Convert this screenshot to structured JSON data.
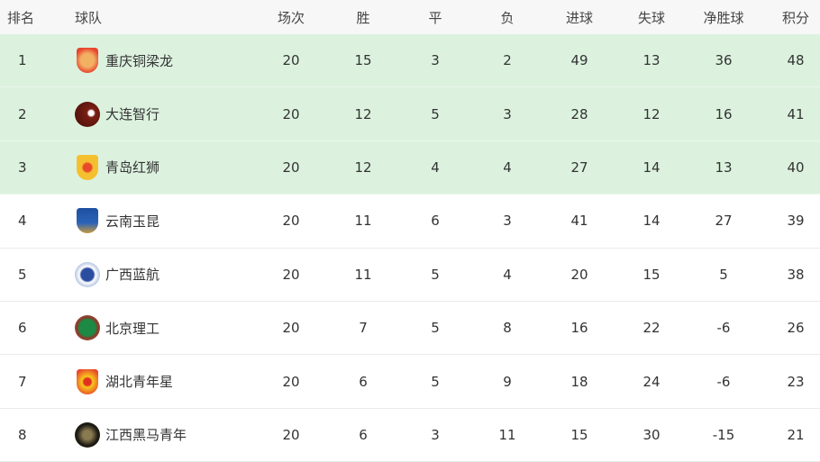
{
  "headers": [
    "排名",
    "球队",
    "场次",
    "胜",
    "平",
    "负",
    "进球",
    "失球",
    "净胜球",
    "积分"
  ],
  "highlight_color": "#dcf2df",
  "rows": [
    {
      "rank": "1",
      "team": "重庆铜梁龙",
      "logo": "chongqing-badge-icon",
      "played": "20",
      "w": "15",
      "d": "3",
      "l": "2",
      "gf": "49",
      "ga": "13",
      "gd": "36",
      "pts": "48"
    },
    {
      "rank": "2",
      "team": "大连智行",
      "logo": "dalian-badge-icon",
      "played": "20",
      "w": "12",
      "d": "5",
      "l": "3",
      "gf": "28",
      "ga": "12",
      "gd": "16",
      "pts": "41"
    },
    {
      "rank": "3",
      "team": "青岛红狮",
      "logo": "qingdao-badge-icon",
      "played": "20",
      "w": "12",
      "d": "4",
      "l": "4",
      "gf": "27",
      "ga": "14",
      "gd": "13",
      "pts": "40"
    },
    {
      "rank": "4",
      "team": "云南玉昆",
      "logo": "yunnan-badge-icon",
      "played": "20",
      "w": "11",
      "d": "6",
      "l": "3",
      "gf": "41",
      "ga": "14",
      "gd": "27",
      "pts": "39"
    },
    {
      "rank": "5",
      "team": "广西蓝航",
      "logo": "guangxi-badge-icon",
      "played": "20",
      "w": "11",
      "d": "5",
      "l": "4",
      "gf": "20",
      "ga": "15",
      "gd": "5",
      "pts": "38"
    },
    {
      "rank": "6",
      "team": "北京理工",
      "logo": "beijing-badge-icon",
      "played": "20",
      "w": "7",
      "d": "5",
      "l": "8",
      "gf": "16",
      "ga": "22",
      "gd": "-6",
      "pts": "26"
    },
    {
      "rank": "7",
      "team": "湖北青年星",
      "logo": "hubei-badge-icon",
      "played": "20",
      "w": "6",
      "d": "5",
      "l": "9",
      "gf": "18",
      "ga": "24",
      "gd": "-6",
      "pts": "23"
    },
    {
      "rank": "8",
      "team": "江西黑马青年",
      "logo": "jiangxi-badge-icon",
      "played": "20",
      "w": "6",
      "d": "3",
      "l": "11",
      "gf": "15",
      "ga": "30",
      "gd": "-15",
      "pts": "21"
    }
  ]
}
